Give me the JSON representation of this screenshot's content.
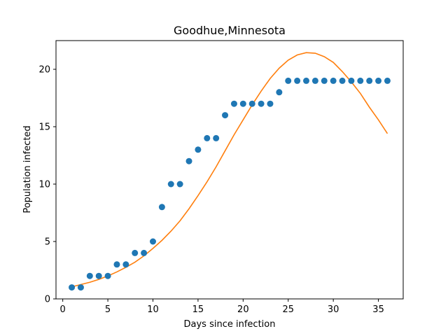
{
  "chart_data": {
    "type": "scatter",
    "title": "Goodhue,Minnesota",
    "xlabel": "Days since infection",
    "ylabel": "Population infected",
    "xlim": [
      -0.75,
      37.75
    ],
    "ylim": [
      0,
      22.5
    ],
    "xticks": [
      0,
      5,
      10,
      15,
      20,
      25,
      30,
      35
    ],
    "yticks": [
      0,
      5,
      10,
      15,
      20
    ],
    "grid": false,
    "series": [
      {
        "kind": "scatter",
        "color": "#1f77b4",
        "x": [
          1,
          2,
          3,
          4,
          5,
          6,
          7,
          8,
          9,
          10,
          11,
          12,
          13,
          14,
          15,
          16,
          17,
          18,
          19,
          20,
          21,
          22,
          23,
          24,
          25,
          26,
          27,
          28,
          29,
          30,
          31,
          32,
          33,
          34,
          35,
          36
        ],
        "y": [
          1,
          1,
          2,
          2,
          2,
          3,
          3,
          4,
          4,
          5,
          8,
          10,
          10,
          12,
          13,
          14,
          14,
          16,
          17,
          17,
          17,
          17,
          17,
          18,
          19,
          19,
          19,
          19,
          19,
          19,
          19,
          19,
          19,
          19,
          19,
          19
        ]
      },
      {
        "kind": "line",
        "color": "#ff7f0e",
        "x": [
          1,
          2,
          3,
          4,
          5,
          6,
          7,
          8,
          9,
          10,
          11,
          12,
          13,
          14,
          15,
          16,
          17,
          18,
          19,
          20,
          21,
          22,
          23,
          24,
          25,
          26,
          27,
          28,
          29,
          30,
          31,
          32,
          33,
          34,
          35,
          36
        ],
        "y": [
          1.05,
          1.25,
          1.45,
          1.7,
          2.0,
          2.35,
          2.75,
          3.2,
          3.75,
          4.4,
          5.1,
          5.9,
          6.8,
          7.85,
          9.0,
          10.2,
          11.5,
          12.9,
          14.3,
          15.6,
          16.9,
          18.1,
          19.2,
          20.1,
          20.8,
          21.25,
          21.45,
          21.4,
          21.1,
          20.6,
          19.8,
          18.9,
          17.9,
          16.7,
          15.6,
          14.4
        ]
      }
    ]
  }
}
